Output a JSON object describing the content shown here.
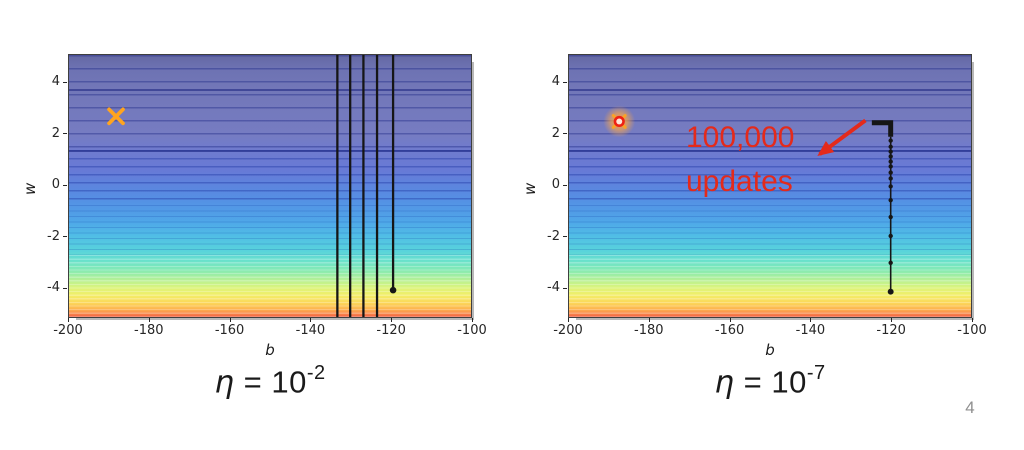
{
  "page": {
    "number": "4"
  },
  "captions": [
    {
      "eta": "η",
      "eq": " = 10",
      "exp": "-2"
    },
    {
      "eta": "η",
      "eq": " = 10",
      "exp": "-7"
    }
  ],
  "annotation": {
    "line1": "100,000",
    "line2": "updates",
    "color": "#e42a1b"
  },
  "colors": {
    "path": "#161616",
    "x_marker": "#ffa41f",
    "ring_marker": "#ee2113",
    "tick_text": "#262626",
    "page_number": "#8f8f8f",
    "contour_top": "#6468a3",
    "contour_bottom": "#a83a2e"
  },
  "chart_data": [
    {
      "type": "contour",
      "title": "loss surface with gradient descent path",
      "xlabel": "b",
      "ylabel": "w",
      "xlim": [
        -200,
        -100
      ],
      "ylim": [
        -5.15,
        5.1
      ],
      "xticks": [
        -200,
        -180,
        -160,
        -140,
        -120,
        -100
      ],
      "yticks": [
        4,
        2,
        0,
        -2,
        -4
      ],
      "caption": "η = 10^-2",
      "minimum_marker": {
        "shape": "x",
        "color": "#ffa41f",
        "b": -188.4,
        "w": 2.7
      },
      "start": {
        "b": -119.3,
        "w": -4.1
      },
      "oscillation_lines_b": [
        -133.2,
        -130.0,
        -126.7,
        -123.3,
        -119.3
      ]
    },
    {
      "type": "contour",
      "title": "loss surface with gradient descent path",
      "xlabel": "b",
      "ylabel": "w",
      "xlim": [
        -200,
        -100
      ],
      "ylim": [
        -5.15,
        5.1
      ],
      "xticks": [
        -200,
        -180,
        -160,
        -140,
        -120,
        -100
      ],
      "yticks": [
        4,
        2,
        0,
        -2,
        -4
      ],
      "caption": "η = 10^-7",
      "minimum_marker": {
        "shape": "circle-glow",
        "color": "#ee2113",
        "b": -187.6,
        "w": 2.5
      },
      "start": {
        "b": -119.9,
        "w": -4.16
      },
      "path_b": -119.9,
      "path_points_w": [
        -4.16,
        -3.03,
        -1.98,
        -1.24,
        -0.58,
        -0.04,
        0.27,
        0.5,
        0.74,
        0.93,
        1.13,
        1.32,
        1.51,
        1.75
      ],
      "top_hook": {
        "w": 2.45,
        "b_end": -124.6
      },
      "annotation_arrow": {
        "from_b": -126.2,
        "from_w": 2.54,
        "to_b": -137.6,
        "to_w": 1.22
      }
    }
  ]
}
